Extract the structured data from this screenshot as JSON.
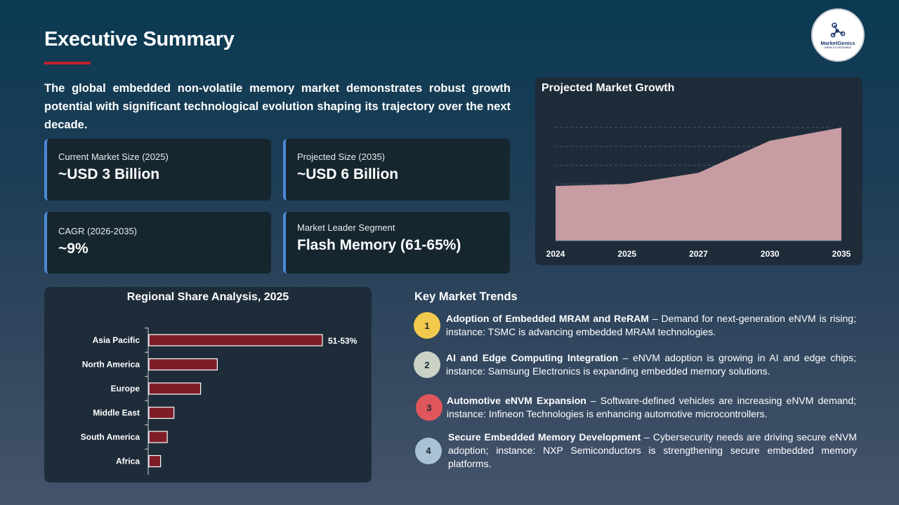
{
  "header": {
    "title": "Executive Summary"
  },
  "logo": {
    "name": "MarketGenics",
    "tagline": "Ideas to Innovation",
    "icon": "network-icon"
  },
  "intro": "The global embedded non-volatile memory market demonstrates robust growth potential with significant technological evolution shaping its trajectory over the next decade.",
  "kpis": [
    {
      "label": "Current Market Size (2025)",
      "value": "~USD 3 Billion"
    },
    {
      "label": "Projected Size (2035)",
      "value": "~USD 6 Billion"
    },
    {
      "label": "CAGR (2026-2035)",
      "value": "~9%"
    },
    {
      "label": "Market Leader Segment",
      "value": "Flash Memory (61-65%)"
    }
  ],
  "growth": {
    "title": "Projected Market Growth"
  },
  "regional": {
    "title": "Regional Share Analysis, 2025"
  },
  "trends_title": "Key Market Trends",
  "trends": [
    {
      "num": "1",
      "color": "#f2c94c",
      "head": "Adoption of Embedded MRAM and ReRAM",
      "body": " – Demand for next-generation eNVM is rising; instance: TSMC is advancing embedded MRAM technologies."
    },
    {
      "num": "2",
      "color": "#c9d2c5",
      "head": "AI and Edge Computing Integration",
      "body": " – eNVM adoption is growing in AI and edge chips; instance: Samsung Electronics is expanding embedded memory solutions."
    },
    {
      "num": "3",
      "color": "#e0575b",
      "head": "Automotive eNVM Expansion",
      "body": " – Software-defined vehicles are increasing eNVM demand; instance: Infineon Technologies is enhancing automotive microcontrollers."
    },
    {
      "num": "4",
      "color": "#a9c2d6",
      "head": "Secure Embedded Memory Development",
      "body": " – Cybersecurity needs are driving secure eNVM adoption; instance: NXP Semiconductors is strengthening secure embedded memory platforms."
    }
  ],
  "chart_data": [
    {
      "type": "area",
      "title": "Projected Market Growth",
      "x": [
        "2024",
        "2025",
        "2027",
        "2030",
        "2035"
      ],
      "values": [
        2.9,
        3.0,
        3.6,
        5.3,
        6.0
      ],
      "ylim": [
        0,
        7
      ],
      "grid": true,
      "color": "#c79ca2"
    },
    {
      "type": "bar",
      "orientation": "horizontal",
      "title": "Regional Share Analysis, 2025",
      "categories": [
        "Asia Pacific",
        "North America",
        "Europe",
        "Middle East",
        "South America",
        "Africa"
      ],
      "values": [
        52,
        20.5,
        15.5,
        7.5,
        5.5,
        3.5
      ],
      "data_labels": [
        "51-53%",
        "",
        "",
        "",
        "",
        ""
      ],
      "xlim": [
        0,
        60
      ],
      "color": "#7e1d28"
    }
  ]
}
